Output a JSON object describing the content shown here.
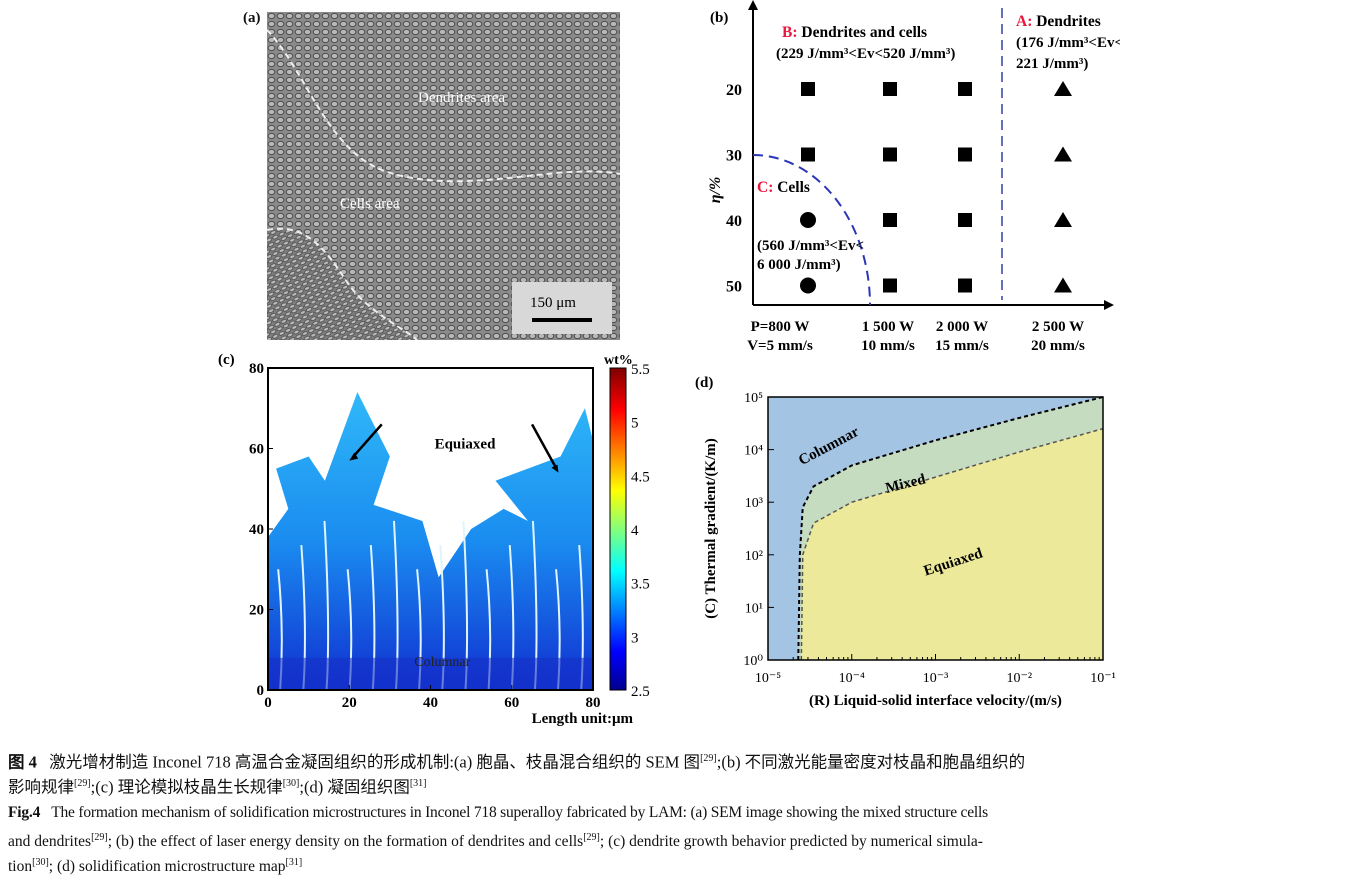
{
  "panel_a": {
    "label": "(a)",
    "dendrites_label": "Dendrites area",
    "cells_label": "Cells area",
    "scale_bar": "150 μm"
  },
  "chart_data": [
    {
      "panel": "(b)",
      "type": "scatter",
      "ylabel": "η/%",
      "y_ticks": [
        "20",
        "30",
        "40",
        "50"
      ],
      "x_ticks": [
        {
          "line1": "P=800 W",
          "line2": "V=5 mm/s"
        },
        {
          "line1": "1 500 W",
          "line2": "10 mm/s"
        },
        {
          "line1": "2 000 W",
          "line2": "15 mm/s"
        },
        {
          "line1": "2 500 W",
          "line2": "20 mm/s"
        }
      ],
      "points": [
        {
          "col": 0,
          "eta": 20,
          "marker": "square"
        },
        {
          "col": 1,
          "eta": 20,
          "marker": "square"
        },
        {
          "col": 2,
          "eta": 20,
          "marker": "square"
        },
        {
          "col": 3,
          "eta": 20,
          "marker": "triangle"
        },
        {
          "col": 0,
          "eta": 30,
          "marker": "square"
        },
        {
          "col": 1,
          "eta": 30,
          "marker": "square"
        },
        {
          "col": 2,
          "eta": 30,
          "marker": "square"
        },
        {
          "col": 3,
          "eta": 30,
          "marker": "triangle"
        },
        {
          "col": 0,
          "eta": 40,
          "marker": "circle"
        },
        {
          "col": 1,
          "eta": 40,
          "marker": "square"
        },
        {
          "col": 2,
          "eta": 40,
          "marker": "square"
        },
        {
          "col": 3,
          "eta": 40,
          "marker": "triangle"
        },
        {
          "col": 0,
          "eta": 50,
          "marker": "circle"
        },
        {
          "col": 1,
          "eta": 50,
          "marker": "square"
        },
        {
          "col": 2,
          "eta": 50,
          "marker": "square"
        },
        {
          "col": 3,
          "eta": 50,
          "marker": "triangle"
        }
      ],
      "regions": [
        {
          "key": "A:",
          "name": "Dendrites",
          "range1": "(176 J/mm³<Ev<",
          "range2": "221 J/mm³)"
        },
        {
          "key": "B:",
          "name": "Dendrites and cells",
          "range1": "(229 J/mm³<Ev<520 J/mm³)"
        },
        {
          "key": "C:",
          "name": "Cells",
          "range1": "(560 J/mm³<Ev<",
          "range2": "6 000 J/mm³)"
        }
      ],
      "colors": {
        "key": "#e8173c",
        "boundary_c": "#2b35b8",
        "boundary_a": "#3040a0"
      }
    },
    {
      "panel": "(c)",
      "type": "heatmap",
      "xlabel": "Length unit:μm",
      "x_ticks": [
        0,
        20,
        40,
        60,
        80
      ],
      "y_ticks": [
        0,
        20,
        40,
        60,
        80
      ],
      "xlim": [
        0,
        80
      ],
      "ylim": [
        0,
        80
      ],
      "colorbar": {
        "title": "wt%",
        "ticks": [
          "2.5",
          "3",
          "3.5",
          "4",
          "4.5",
          "5",
          "5.5"
        ],
        "range": [
          2.5,
          5.5
        ],
        "colormap": "jet"
      },
      "annotations": [
        "Equiaxed",
        "Columnar"
      ]
    },
    {
      "panel": "(d)",
      "type": "area",
      "xlabel": "(R) Liquid-solid interface velocity/(m/s)",
      "ylabel": "(C) Thermal gradient/(K/m)",
      "x_scale": "log",
      "y_scale": "log",
      "xlim": [
        1e-05,
        0.1
      ],
      "ylim": [
        1,
        100000.0
      ],
      "x_ticks": [
        "10⁻⁵",
        "10⁻⁴",
        "10⁻³",
        "10⁻²",
        "10⁻¹"
      ],
      "y_ticks": [
        "10⁰",
        "10¹",
        "10²",
        "10³",
        "10⁴",
        "10⁵"
      ],
      "regions": [
        {
          "name": "Columnar",
          "color": "#a4c4e4"
        },
        {
          "name": "Mixed",
          "color": "#c6dcc0"
        },
        {
          "name": "Equiaxed",
          "color": "#ece99a"
        }
      ],
      "columnar_mixed_boundary": [
        [
          2.3e-05,
          1
        ],
        [
          2.4e-05,
          100
        ],
        [
          2.6e-05,
          800
        ],
        [
          3.5e-05,
          2000
        ],
        [
          0.0001,
          5000
        ],
        [
          0.001,
          15000
        ],
        [
          0.01,
          40000
        ],
        [
          0.1,
          100000
        ]
      ],
      "mixed_equiaxed_boundary": [
        [
          2.5e-05,
          1
        ],
        [
          2.6e-05,
          100
        ],
        [
          3.5e-05,
          400
        ],
        [
          0.0001,
          1000
        ],
        [
          0.001,
          3000
        ],
        [
          0.01,
          9000
        ],
        [
          0.1,
          25000
        ]
      ]
    }
  ],
  "caption": {
    "cn_label": "图 4",
    "cn_line1": "激光增材制造 Inconel 718 高温合金凝固组织的形成机制:(a) 胞晶、枝晶混合组织的 SEM 图",
    "ref29": "[29]",
    "cn_line1b": ";(b) 不同激光能量密度对枝晶和胞晶组织的",
    "cn_line2a": "影响规律",
    "cn_line2b": ";(c) 理论模拟枝晶生长规律",
    "ref30": "[30]",
    "cn_line2c": ";(d) 凝固组织图",
    "ref31": "[31]",
    "en_label": "Fig.4",
    "en_line1": "The formation mechanism of solidification microstructures in Inconel 718 superalloy fabricated by LAM: (a) SEM image showing the mixed structure cells",
    "en_line2a": "and dendrites",
    "en_line2b": "; (b) the effect of laser energy density on the formation of dendrites and cells",
    "en_line2c": "; (c) dendrite growth behavior predicted by numerical simula-",
    "en_line3a": "tion",
    "en_line3b": "; (d) solidification microstructure map"
  }
}
